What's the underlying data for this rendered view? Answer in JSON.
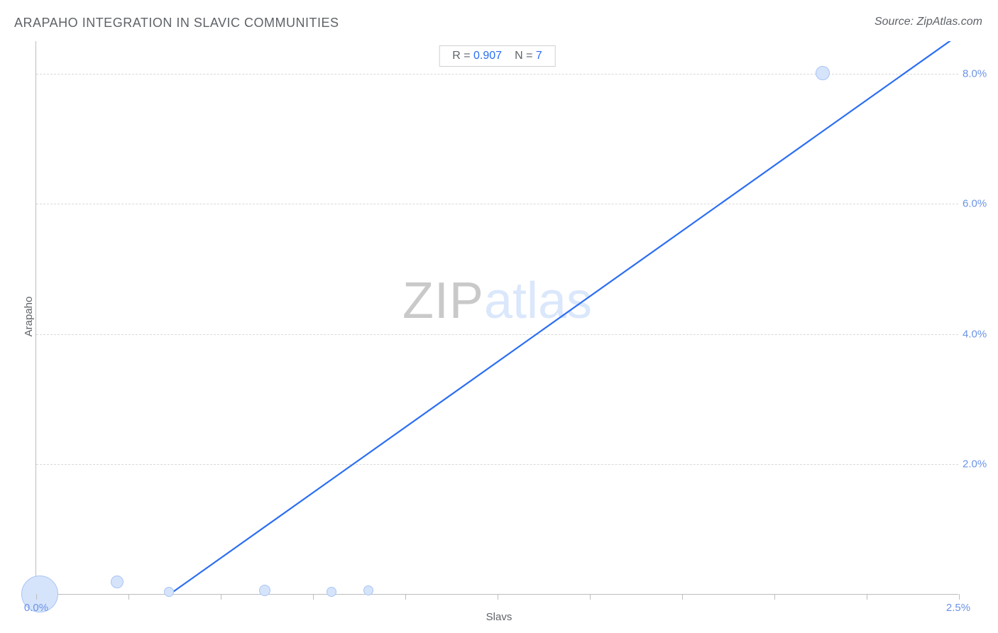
{
  "title": "ARAPAHO INTEGRATION IN SLAVIC COMMUNITIES",
  "source": "Source: ZipAtlas.com",
  "watermark": {
    "part1": "ZIP",
    "part2": "atlas"
  },
  "chart": {
    "type": "scatter",
    "x_axis": {
      "label": "Slavs",
      "min": 0.0,
      "max": 2.5,
      "tick_step": 0.25,
      "start_label": "0.0%",
      "end_label": "2.5%",
      "tick_label_color": "#6b93e6",
      "tick_color": "#bdbdbd"
    },
    "y_axis": {
      "label": "Arapaho",
      "min": 0.0,
      "max": 8.5,
      "grid_values": [
        2.0,
        4.0,
        6.0,
        8.0
      ],
      "grid_labels": [
        "2.0%",
        "4.0%",
        "6.0%",
        "8.0%"
      ],
      "tick_label_color": "#6b93e6"
    },
    "grid_color": "#d9d9d9",
    "axis_line_color": "#bdbdbd",
    "background_color": "#ffffff",
    "stats": {
      "r_label": "R =",
      "r_value": "0.907",
      "n_label": "N =",
      "n_value": "7",
      "box_border": "#d0d0d0",
      "label_color": "#5f6368",
      "value_color": "#2b6ef2"
    },
    "regression_line": {
      "color": "#2b6ef2",
      "width": 2.2,
      "x1": 0.36,
      "y1": 0.0,
      "x2": 2.5,
      "y2": 8.6
    },
    "bubble_fill": "#d6e4fb",
    "bubble_stroke": "#a9c4f5",
    "points": [
      {
        "x": 0.01,
        "y": 0.0,
        "size": 52
      },
      {
        "x": 0.22,
        "y": 0.18,
        "size": 18
      },
      {
        "x": 0.36,
        "y": 0.03,
        "size": 14
      },
      {
        "x": 0.62,
        "y": 0.05,
        "size": 16
      },
      {
        "x": 0.8,
        "y": 0.03,
        "size": 14
      },
      {
        "x": 0.9,
        "y": 0.05,
        "size": 14
      },
      {
        "x": 2.13,
        "y": 8.0,
        "size": 20
      }
    ]
  }
}
